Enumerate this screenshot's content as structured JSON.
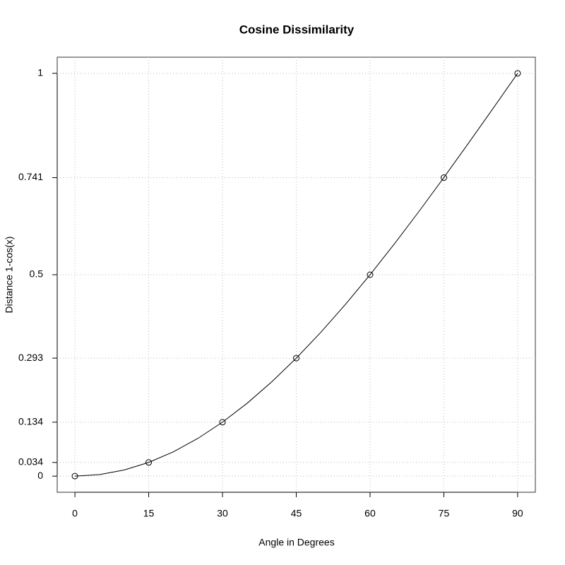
{
  "chart_data": {
    "type": "line",
    "title": "Cosine Dissimilarity",
    "x_label": "Angle in Degrees",
    "y_label": "Distance 1-cos(x)",
    "xlim": [
      -3.6,
      93.6
    ],
    "ylim": [
      -0.04,
      1.04
    ],
    "xticks": [
      0,
      15,
      30,
      45,
      60,
      75,
      90
    ],
    "yticks": [
      0,
      0.034,
      0.134,
      0.293,
      0.5,
      0.741,
      1
    ],
    "grid": true,
    "series": [
      {
        "style": "line",
        "color": "#000000",
        "x": [
          0,
          5,
          10,
          15,
          20,
          25,
          30,
          35,
          40,
          45,
          50,
          55,
          60,
          65,
          70,
          75,
          80,
          85,
          90
        ],
        "values": [
          0,
          0.0038,
          0.0152,
          0.0341,
          0.0603,
          0.0937,
          0.134,
          0.1808,
          0.234,
          0.2929,
          0.3572,
          0.4264,
          0.5,
          0.5774,
          0.658,
          0.7412,
          0.8264,
          0.9128,
          1
        ]
      },
      {
        "style": "points",
        "color": "#000000",
        "x": [
          0,
          15,
          30,
          45,
          60,
          75,
          90
        ],
        "values": [
          0,
          0.034,
          0.134,
          0.293,
          0.5,
          0.741,
          1
        ]
      }
    ]
  }
}
